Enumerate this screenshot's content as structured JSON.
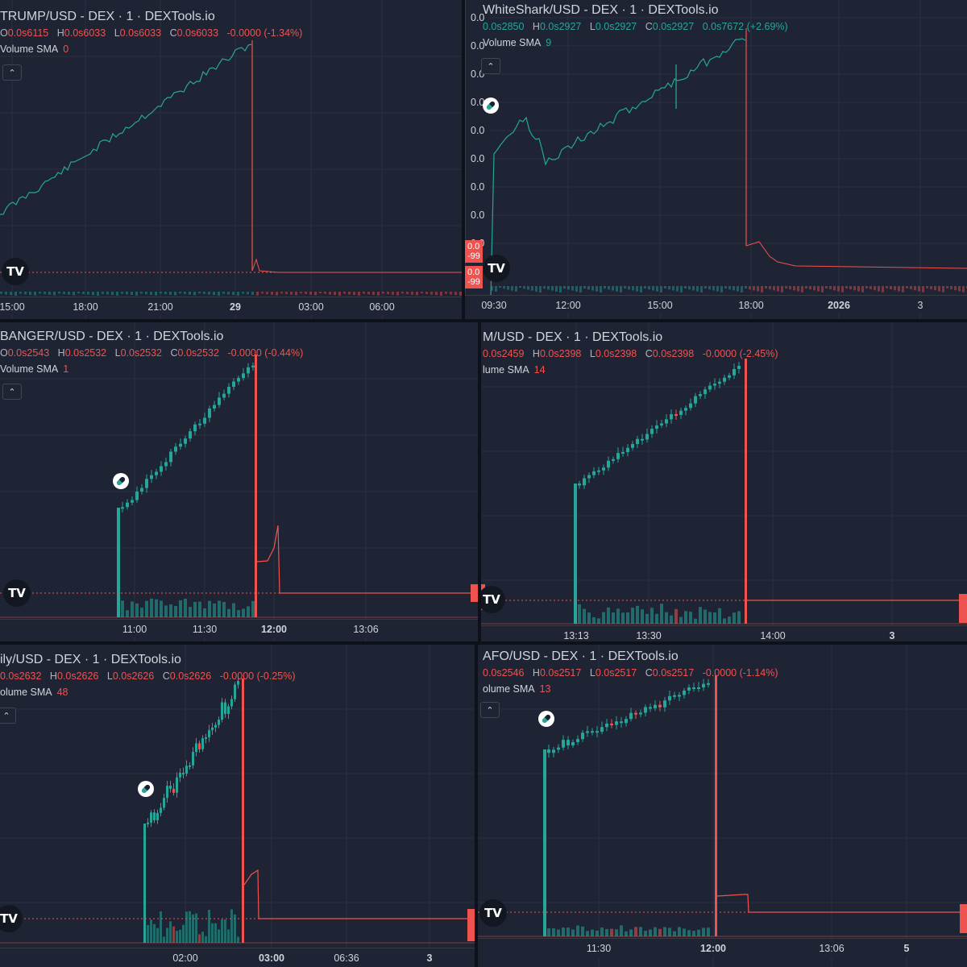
{
  "panels": [
    {
      "id": "p1",
      "title": "TRUMP/USD - DEX · 1 · DEXTools.io",
      "ohlc": {
        "O": "0.0s6115",
        "H": "0.0s6033",
        "L": "0.0s6033",
        "C": "0.0s6033",
        "change": "-0.0000 (-1.34%)"
      },
      "volume_label": "Volume SMA",
      "volume_value": "0",
      "x_ticks": [
        {
          "label": "15:00"
        },
        {
          "label": "18:00"
        },
        {
          "label": "21:00"
        },
        {
          "label": "29",
          "bold": true
        },
        {
          "label": "03:00"
        },
        {
          "label": "06:00"
        }
      ]
    },
    {
      "id": "p2",
      "title": "WhiteShark/USD - DEX · 1 · DEXTools.io",
      "ohlc": {
        "O": "0.0s2850",
        "H": "0.0s2927",
        "L": "0.0s2927",
        "C": "0.0s2927",
        "change": "0.0s7672 (+2.69%)"
      },
      "change_up": true,
      "volume_label": "Volume SMA",
      "volume_value": "9",
      "x_ticks": [
        {
          "label": "09:30"
        },
        {
          "label": "12:00"
        },
        {
          "label": "15:00"
        },
        {
          "label": "18:00"
        },
        {
          "label": "2026",
          "bold": true
        },
        {
          "label": "3"
        }
      ],
      "y_ticks": [
        "0.0",
        "0.0",
        "0.0",
        "0.0",
        "0.0",
        "0.0",
        "0.0",
        "0.0",
        "0.0"
      ],
      "price_tags": [
        "0.0",
        "-99",
        "0.0",
        "-99"
      ]
    },
    {
      "id": "p3",
      "title": "BANGER/USD - DEX · 1 · DEXTools.io",
      "ohlc": {
        "O": "0.0s2543",
        "H": "0.0s2532",
        "L": "0.0s2532",
        "C": "0.0s2532",
        "change": "-0.0000 (-0.44%)"
      },
      "volume_label": "Volume SMA",
      "volume_value": "1",
      "x_ticks": [
        {
          "label": "11:00"
        },
        {
          "label": "11:30"
        },
        {
          "label": "12:00",
          "bold": true
        },
        {
          "label": "13:06"
        }
      ]
    },
    {
      "id": "p4",
      "title": "M/USD - DEX · 1 · DEXTools.io",
      "ohlc": {
        "O": "0.0s2459",
        "H": "0.0s2398",
        "L": "0.0s2398",
        "C": "0.0s2398",
        "change": "-0.0000 (-2.45%)"
      },
      "volume_label": "lume SMA",
      "volume_value": "14",
      "x_ticks": [
        {
          "label": "13:13"
        },
        {
          "label": "13:30"
        },
        {
          "label": "14:00"
        },
        {
          "label": "3",
          "bold": true
        }
      ]
    },
    {
      "id": "p5",
      "title": "ily/USD - DEX · 1 · DEXTools.io",
      "ohlc": {
        "O": "0.0s2632",
        "H": "0.0s2626",
        "L": "0.0s2626",
        "C": "0.0s2626",
        "change": "-0.0000 (-0.25%)"
      },
      "volume_label": "olume SMA",
      "volume_value": "48",
      "x_ticks": [
        {
          "label": "02:00"
        },
        {
          "label": "03:00",
          "bold": true
        },
        {
          "label": "06:36"
        },
        {
          "label": "3",
          "bold": true
        }
      ]
    },
    {
      "id": "p6",
      "title": "AFO/USD - DEX · 1 · DEXTools.io",
      "ohlc": {
        "O": "0.0s2546",
        "H": "0.0s2517",
        "L": "0.0s2517",
        "C": "0.0s2517",
        "change": "-0.0000 (-1.14%)"
      },
      "volume_label": "olume SMA",
      "volume_value": "13",
      "x_ticks": [
        {
          "label": "11:30"
        },
        {
          "label": "12:00",
          "bold": true
        },
        {
          "label": "13:06"
        },
        {
          "label": "5",
          "bold": true
        }
      ]
    }
  ],
  "icons": {
    "collapse": "chevron-up-icon",
    "logo": "tradingview-logo",
    "indicator": "pill-icon",
    "tv_text": "TV"
  },
  "colors": {
    "up": "#26a69a",
    "down": "#ef5350",
    "bg": "#1e2433",
    "grid": "#2a3040"
  },
  "chart_data": [
    {
      "type": "line",
      "title": "TRUMP/USD - DEX · 1 · DEXTools.io",
      "x": [
        "15:00",
        "18:00",
        "21:00",
        "29",
        "03:00",
        "06:00"
      ],
      "shape": "steady rise then sudden collapse near 00:30, flat near zero afterwards"
    },
    {
      "type": "line",
      "title": "WhiteShark/USD - DEX · 1 · DEXTools.io",
      "x": [
        "09:30",
        "12:00",
        "15:00",
        "18:00",
        "2026",
        "3"
      ],
      "shape": "rise with dip near 15:30, peak then collapse at 18:00, small steps then flat"
    },
    {
      "type": "bar",
      "title": "BANGER/USD - DEX · 1 · DEXTools.io",
      "x": [
        "11:00",
        "11:30",
        "12:00",
        "13:06"
      ],
      "shape": "candles launch ~10:55, climb to peak ~11:50, crash, brief bounce, flat"
    },
    {
      "type": "bar",
      "title": "M/USD - DEX · 1 · DEXTools.io",
      "x": [
        "13:13",
        "13:30",
        "14:00",
        "3"
      ],
      "shape": "candles launch 13:13, steady climb to ~13:50, crash then flat"
    },
    {
      "type": "bar",
      "title": "ily/USD - DEX · 1 · DEXTools.io",
      "x": [
        "02:00",
        "03:00",
        "06:36",
        "3"
      ],
      "shape": "candles launch ~01:30, volatile climb to ~02:40, crash, small bounce, flat"
    },
    {
      "type": "bar",
      "title": "AFO/USD - DEX · 1 · DEXTools.io",
      "x": [
        "11:30",
        "12:00",
        "13:06",
        "5"
      ],
      "shape": "candles launch ~11:15, climb to plateau ~11:55, crash, small step, flat"
    }
  ]
}
